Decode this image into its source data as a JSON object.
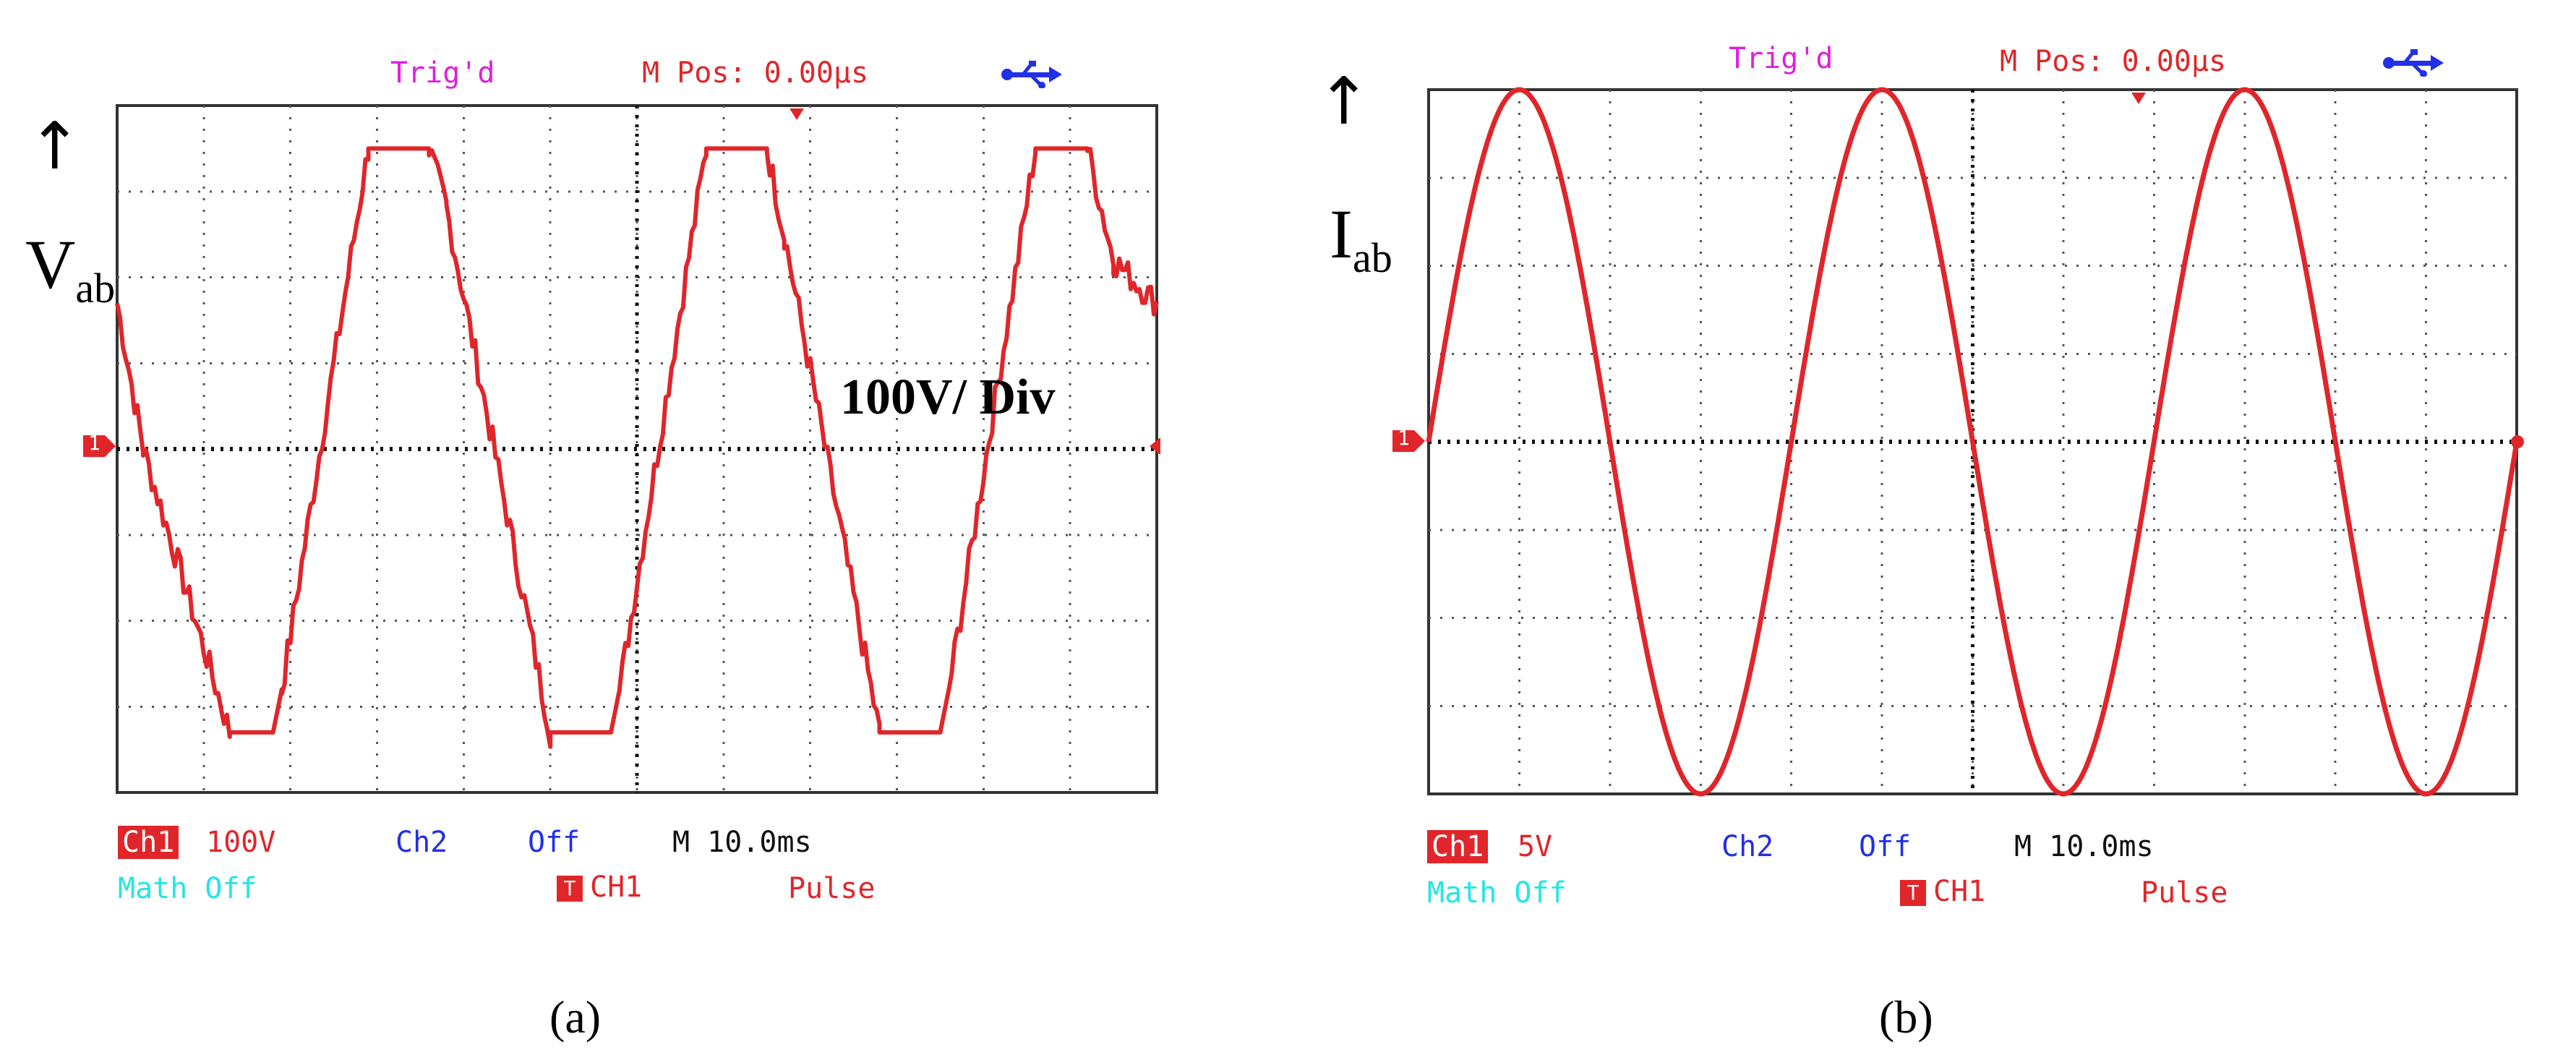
{
  "chart_data": [
    {
      "type": "line",
      "panel": "(a)",
      "title": "Vab",
      "quantity": {
        "symbol": "V",
        "subscript": "ab"
      },
      "scale_annotation": "100V/ Div",
      "x": {
        "unit": "ms",
        "per_div": 10.0,
        "divisions": 12,
        "range": [
          0,
          120
        ]
      },
      "y": {
        "unit": "div",
        "divisions": 8,
        "range": [
          -4,
          4
        ]
      },
      "series": [
        {
          "name": "CH1",
          "color": "#e0262a",
          "waveform": "trapezoidal",
          "points": [
            [
              0,
              1.7
            ],
            [
              3,
              0
            ],
            [
              13,
              -3.3
            ],
            [
              18,
              -3.3
            ],
            [
              19,
              -2.8
            ],
            [
              29,
              3.5
            ],
            [
              36,
              3.5
            ],
            [
              38,
              2.8
            ],
            [
              50,
              -3.3
            ],
            [
              57,
              -3.3
            ],
            [
              58,
              -2.8
            ],
            [
              68,
              3.5
            ],
            [
              75,
              3.5
            ],
            [
              77,
              2.5
            ],
            [
              88,
              -3.3
            ],
            [
              95,
              -3.3
            ],
            [
              96,
              -2.8
            ],
            [
              106,
              3.5
            ],
            [
              112,
              3.5
            ],
            [
              115,
              2.2
            ],
            [
              120,
              1.7
            ]
          ]
        }
      ],
      "osd": {
        "trig": "Trig'd",
        "mpos": "M Pos: 0.00µs",
        "ch1_label": "Ch1",
        "ch1_scale": "100V",
        "ch2_label": "Ch2",
        "ch2_state": "Off",
        "timebase": "M 10.0ms",
        "math": "Math Off",
        "trigger_source": "CH1",
        "trigger_type": "Pulse",
        "marker": "1"
      },
      "caption": "(a)"
    },
    {
      "type": "line",
      "panel": "(b)",
      "title": "Iab",
      "quantity": {
        "symbol": "I",
        "subscript": "ab"
      },
      "x": {
        "unit": "ms",
        "per_div": 10.0,
        "divisions": 12,
        "range": [
          0,
          120
        ]
      },
      "y": {
        "unit": "div",
        "divisions": 8,
        "range": [
          -4,
          4
        ]
      },
      "series": [
        {
          "name": "CH1",
          "color": "#e0262a",
          "waveform": "sinusoidal",
          "amplitude_div": 4.0,
          "period_ms": 40,
          "phase_deg": 0,
          "end_value_div": 0
        }
      ],
      "osd": {
        "trig": "Trig'd",
        "mpos": "M Pos: 0.00µs",
        "ch1_label": "Ch1",
        "ch1_scale": "5V",
        "ch2_label": "Ch2",
        "ch2_state": "Off",
        "timebase": "M 10.0ms",
        "math": "Math Off",
        "trigger_source": "CH1",
        "trigger_type": "Pulse",
        "marker": "1"
      },
      "caption": "(b)"
    }
  ],
  "colors": {
    "trace": "#e0262a",
    "grid": "#555555",
    "trig": "#e01ee0",
    "ch2": "#2230e6",
    "math": "#22e6e6"
  },
  "icons": {
    "usb": "usb-icon",
    "trigger_marker": "trigger-position-icon",
    "ch1_marker": "ch1-ground-marker-icon",
    "arrow": "arrow-up-icon"
  }
}
